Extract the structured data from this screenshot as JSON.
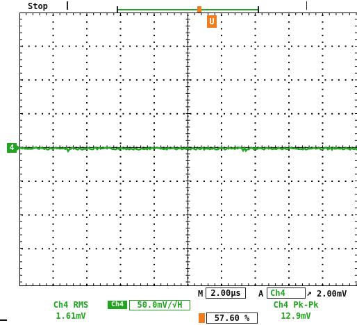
{
  "status": {
    "run_state": "Stop"
  },
  "trigger_position_marker": "U",
  "channel_marker": "4",
  "timebase": {
    "prefix": "M",
    "value": "2.00µs"
  },
  "acquisition_mode": "A",
  "trigger": {
    "source": "Ch4",
    "slope_symbol": "↗",
    "level": "2.00mV"
  },
  "measurements": [
    {
      "label": "Ch4 RMS",
      "value": "1.61mV"
    },
    {
      "label": "Ch4 Pk-Pk",
      "value": "12.9mV"
    }
  ],
  "channel_scale": {
    "badge": "Ch4",
    "value": "50.0mV/√H"
  },
  "trigger_position_percent": "57.60 %",
  "colors": {
    "trace": "#1fa51f",
    "trigger": "#f07d1e",
    "grid": "#000000"
  },
  "display": {
    "graticule_divisions_x": 10,
    "graticule_divisions_y": 8
  }
}
